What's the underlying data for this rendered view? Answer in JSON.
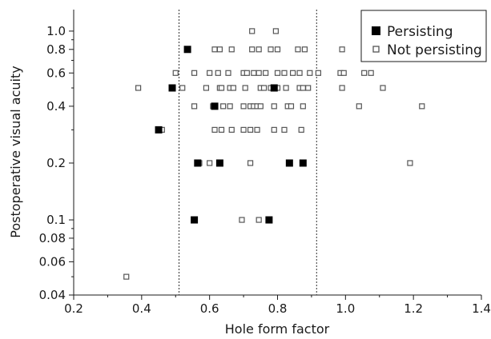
{
  "chart_data": {
    "type": "scatter",
    "title": "",
    "xlabel": "Hole form factor",
    "ylabel": "Postoperative visual acuity",
    "xlim": [
      0.2,
      1.4
    ],
    "ylim": [
      0.04,
      1.3
    ],
    "y_scale": "log",
    "x_ticks": [
      "0.2",
      "0.4",
      "0.6",
      "0.8",
      "1.0",
      "1.2",
      "1.4"
    ],
    "y_ticks": [
      "0.04",
      "0.06",
      "0.08",
      "0.1",
      "0.2",
      "0.4",
      "0.6",
      "0.8",
      "1.0"
    ],
    "reference_lines_x": [
      0.51,
      0.915
    ],
    "grid": false,
    "legend_position": "top-right",
    "series": [
      {
        "name": "Persisting",
        "color": "#000000",
        "marker": "filled-square",
        "points": [
          [
            0.535,
            0.8
          ],
          [
            0.49,
            0.5
          ],
          [
            0.79,
            0.5
          ],
          [
            0.615,
            0.4
          ],
          [
            0.45,
            0.3
          ],
          [
            0.565,
            0.2
          ],
          [
            0.63,
            0.2
          ],
          [
            0.835,
            0.2
          ],
          [
            0.875,
            0.2
          ],
          [
            0.555,
            0.1
          ],
          [
            0.775,
            0.1
          ]
        ]
      },
      {
        "name": "Not persisting",
        "color": "#555555",
        "marker": "open-square",
        "points": [
          [
            0.725,
            1.0
          ],
          [
            0.795,
            1.0
          ],
          [
            0.535,
            0.8
          ],
          [
            0.615,
            0.8
          ],
          [
            0.63,
            0.8
          ],
          [
            0.665,
            0.8
          ],
          [
            0.725,
            0.8
          ],
          [
            0.745,
            0.8
          ],
          [
            0.78,
            0.8
          ],
          [
            0.8,
            0.8
          ],
          [
            0.86,
            0.8
          ],
          [
            0.88,
            0.8
          ],
          [
            0.99,
            0.8
          ],
          [
            0.5,
            0.6
          ],
          [
            0.555,
            0.6
          ],
          [
            0.6,
            0.6
          ],
          [
            0.625,
            0.6
          ],
          [
            0.655,
            0.6
          ],
          [
            0.7,
            0.6
          ],
          [
            0.71,
            0.6
          ],
          [
            0.73,
            0.6
          ],
          [
            0.745,
            0.6
          ],
          [
            0.765,
            0.6
          ],
          [
            0.8,
            0.6
          ],
          [
            0.82,
            0.6
          ],
          [
            0.845,
            0.6
          ],
          [
            0.865,
            0.6
          ],
          [
            0.895,
            0.6
          ],
          [
            0.92,
            0.6
          ],
          [
            0.985,
            0.6
          ],
          [
            0.995,
            0.6
          ],
          [
            1.055,
            0.6
          ],
          [
            1.075,
            0.6
          ],
          [
            0.39,
            0.5
          ],
          [
            0.52,
            0.5
          ],
          [
            0.59,
            0.5
          ],
          [
            0.63,
            0.5
          ],
          [
            0.635,
            0.5
          ],
          [
            0.66,
            0.5
          ],
          [
            0.67,
            0.5
          ],
          [
            0.705,
            0.5
          ],
          [
            0.75,
            0.5
          ],
          [
            0.76,
            0.5
          ],
          [
            0.78,
            0.5
          ],
          [
            0.8,
            0.5
          ],
          [
            0.825,
            0.5
          ],
          [
            0.865,
            0.5
          ],
          [
            0.875,
            0.5
          ],
          [
            0.89,
            0.5
          ],
          [
            0.99,
            0.5
          ],
          [
            1.11,
            0.5
          ],
          [
            0.555,
            0.4
          ],
          [
            0.61,
            0.4
          ],
          [
            0.64,
            0.4
          ],
          [
            0.66,
            0.4
          ],
          [
            0.7,
            0.4
          ],
          [
            0.72,
            0.4
          ],
          [
            0.73,
            0.4
          ],
          [
            0.74,
            0.4
          ],
          [
            0.75,
            0.4
          ],
          [
            0.79,
            0.4
          ],
          [
            0.83,
            0.4
          ],
          [
            0.84,
            0.4
          ],
          [
            0.875,
            0.4
          ],
          [
            1.04,
            0.4
          ],
          [
            1.225,
            0.4
          ],
          [
            0.46,
            0.3
          ],
          [
            0.615,
            0.3
          ],
          [
            0.635,
            0.3
          ],
          [
            0.665,
            0.3
          ],
          [
            0.7,
            0.3
          ],
          [
            0.72,
            0.3
          ],
          [
            0.74,
            0.3
          ],
          [
            0.79,
            0.3
          ],
          [
            0.82,
            0.3
          ],
          [
            0.87,
            0.3
          ],
          [
            0.57,
            0.2
          ],
          [
            0.6,
            0.2
          ],
          [
            0.72,
            0.2
          ],
          [
            1.19,
            0.2
          ],
          [
            0.695,
            0.1
          ],
          [
            0.745,
            0.1
          ],
          [
            0.355,
            0.05
          ]
        ]
      }
    ]
  }
}
